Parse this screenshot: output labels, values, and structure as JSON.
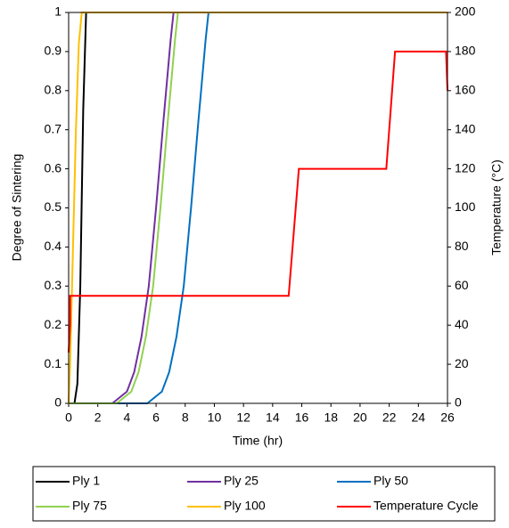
{
  "chart_data": {
    "type": "line",
    "xlabel": "Time (hr)",
    "ylabel": "Degree of Sintering",
    "y2label": "Temperature (°C)",
    "xlim": [
      0,
      26
    ],
    "xticks": [
      0,
      2,
      4,
      6,
      8,
      10,
      12,
      14,
      16,
      18,
      20,
      22,
      24,
      26
    ],
    "ylim": [
      0,
      1
    ],
    "yticks": [
      0,
      0.1,
      0.2,
      0.3,
      0.4,
      0.5,
      0.6,
      0.7,
      0.8,
      0.9,
      1
    ],
    "y2lim": [
      0,
      200
    ],
    "y2ticks": [
      0,
      20,
      40,
      60,
      80,
      100,
      120,
      140,
      160,
      180,
      200
    ],
    "legend": "bottom",
    "series": [
      {
        "name": "Ply 1",
        "color": "#000000",
        "x": [
          0,
          0.4,
          0.6,
          0.8,
          1.0,
          1.2,
          26
        ],
        "values": [
          0,
          0,
          0.05,
          0.3,
          0.75,
          1,
          1
        ]
      },
      {
        "name": "Ply 25",
        "color": "#7030a0",
        "x": [
          0,
          3,
          4,
          4.5,
          5,
          5.5,
          6,
          6.5,
          7,
          7.2,
          26
        ],
        "values": [
          0,
          0,
          0.03,
          0.08,
          0.17,
          0.3,
          0.5,
          0.72,
          0.93,
          1,
          1
        ]
      },
      {
        "name": "Ply 50",
        "color": "#0070c0",
        "x": [
          0,
          5.4,
          6.4,
          6.9,
          7.4,
          7.9,
          8.4,
          8.9,
          9.4,
          9.6,
          26
        ],
        "values": [
          0,
          0,
          0.03,
          0.08,
          0.17,
          0.3,
          0.5,
          0.72,
          0.93,
          1,
          1
        ]
      },
      {
        "name": "Ply 75",
        "color": "#92d050",
        "x": [
          0,
          3.3,
          4.3,
          4.8,
          5.3,
          5.8,
          6.3,
          6.8,
          7.3,
          7.5,
          26
        ],
        "values": [
          0,
          0,
          0.03,
          0.08,
          0.17,
          0.3,
          0.5,
          0.72,
          0.93,
          1,
          1
        ]
      },
      {
        "name": "Ply 100",
        "color": "#ffc000",
        "x": [
          0,
          0.1,
          0.3,
          0.5,
          0.7,
          0.9,
          26
        ],
        "values": [
          0,
          0.1,
          0.4,
          0.7,
          0.92,
          1,
          1
        ]
      },
      {
        "name": "Temperature Cycle",
        "color": "#ff0000",
        "axis": "y2",
        "x": [
          0,
          0.1,
          0.1,
          15.1,
          15.8,
          21.8,
          22.4,
          25.9,
          26
        ],
        "values": [
          26,
          40,
          55,
          55,
          120,
          120,
          180,
          180,
          160
        ]
      }
    ]
  }
}
